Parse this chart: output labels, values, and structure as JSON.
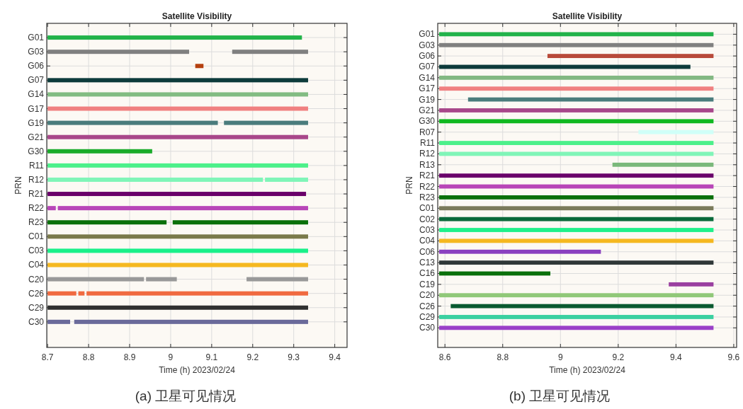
{
  "chart_data": [
    {
      "type": "bar",
      "orientation": "horizontal",
      "title": "Satellite Visibility",
      "xlabel": "Time (h)  2023/02/24",
      "ylabel": "PRN",
      "categories": [
        "G01",
        "G03",
        "G06",
        "G07",
        "G14",
        "G17",
        "G19",
        "G21",
        "G30",
        "R11",
        "R12",
        "R21",
        "R22",
        "R23",
        "C01",
        "C03",
        "C04",
        "C20",
        "C26",
        "C29",
        "C30"
      ],
      "series": [
        {
          "base": [
            8.7,
            8.7,
            9.06,
            8.7,
            8.7,
            8.7,
            8.7,
            8.7,
            8.7,
            8.7,
            8.7,
            8.7,
            8.7,
            8.7,
            8.7,
            8.7,
            8.7,
            8.7,
            8.7,
            8.7,
            8.7
          ],
          "values": [
            0.62,
            0.345,
            0.02,
            0.635,
            0.635,
            0.635,
            0.415,
            0.635,
            0.255,
            0.635,
            0.525,
            0.63,
            0.02,
            0.29,
            0.635,
            0.635,
            0.635,
            0.235,
            0.07,
            0.635,
            0.055
          ],
          "colors": [
            "#22b34a",
            "#808080",
            "#b5400f",
            "#0d3b3b",
            "#82bc82",
            "#f08080",
            "#4a7c7c",
            "#a8478a",
            "#1aab2a",
            "#4cf08a",
            "#80f5b8",
            "#6a006a",
            "#b845b8",
            "#0a700a",
            "#7a7a4a",
            "#1af08a",
            "#f5b820",
            "#999999",
            "#f06a40",
            "#303030",
            "#6a6a9a"
          ]
        },
        {
          "base": [
            null,
            9.15,
            null,
            null,
            null,
            null,
            9.13,
            null,
            null,
            null,
            9.23,
            null,
            8.725,
            9.005,
            null,
            null,
            null,
            8.94,
            8.775,
            null,
            8.765
          ],
          "values": [
            null,
            0.185,
            null,
            null,
            null,
            null,
            0.205,
            null,
            null,
            null,
            0.105,
            null,
            0.61,
            0.33,
            null,
            null,
            null,
            0.075,
            0.015,
            null,
            0.57
          ],
          "colors": [
            null,
            "#808080",
            null,
            null,
            null,
            null,
            "#4a7c7c",
            null,
            null,
            null,
            "#80f5b8",
            null,
            "#b845b8",
            "#0a700a",
            null,
            null,
            null,
            "#999999",
            "#f06a40",
            null,
            "#6a6a9a"
          ]
        },
        {
          "base": [
            null,
            null,
            null,
            null,
            null,
            null,
            null,
            null,
            null,
            null,
            null,
            null,
            null,
            null,
            null,
            null,
            null,
            9.185,
            8.795,
            null,
            null
          ],
          "values": [
            null,
            null,
            null,
            null,
            null,
            null,
            null,
            null,
            null,
            null,
            null,
            null,
            null,
            null,
            null,
            null,
            null,
            0.15,
            0.54,
            null,
            null
          ],
          "colors": [
            null,
            null,
            null,
            null,
            null,
            null,
            null,
            null,
            null,
            null,
            null,
            null,
            null,
            null,
            null,
            null,
            null,
            "#999999",
            "#f06a40",
            null,
            null
          ]
        }
      ],
      "xlim": [
        8.698,
        9.43
      ],
      "xticks": [
        8.7,
        8.8,
        8.9,
        9,
        9.1,
        9.2,
        9.3,
        9.4
      ],
      "grid": true,
      "annotations": [
        "(a) 卫星可见情况"
      ]
    },
    {
      "type": "bar",
      "orientation": "horizontal",
      "title": "Satellite Visibility",
      "xlabel": "Time (h)  2023/02/24",
      "ylabel": "PRN",
      "categories": [
        "G01",
        "G03",
        "G06",
        "G07",
        "G14",
        "G17",
        "G19",
        "G21",
        "G30",
        "R07",
        "R11",
        "R12",
        "R13",
        "R21",
        "R22",
        "R23",
        "C01",
        "C02",
        "C03",
        "C04",
        "C06",
        "C13",
        "C16",
        "C19",
        "C20",
        "C26",
        "C29",
        "C30"
      ],
      "series": [
        {
          "base": [
            8.58,
            8.58,
            8.955,
            8.58,
            8.58,
            8.58,
            8.68,
            8.58,
            8.58,
            9.27,
            8.58,
            8.58,
            9.18,
            8.58,
            8.58,
            8.58,
            8.58,
            8.58,
            8.58,
            8.58,
            8.58,
            8.58,
            8.58,
            9.375,
            8.58,
            8.62,
            8.58,
            8.58
          ],
          "values": [
            0.95,
            0.95,
            0.575,
            0.87,
            0.95,
            0.95,
            0.85,
            0.95,
            0.95,
            0.26,
            0.95,
            0.95,
            0.35,
            0.95,
            0.95,
            0.95,
            0.95,
            0.95,
            0.95,
            0.95,
            0.56,
            0.95,
            0.385,
            0.155,
            0.95,
            0.91,
            0.95,
            0.95
          ],
          "colors": [
            "#22b34a",
            "#808080",
            "#b84a3a",
            "#0d3b3b",
            "#82b882",
            "#f08080",
            "#4a7c7c",
            "#a8478a",
            "#10b820",
            "#d0fff8",
            "#4cf08a",
            "#80f5b8",
            "#7ab87a",
            "#6a006a",
            "#b845b8",
            "#0a700a",
            "#7a7a5a",
            "#0a6a3a",
            "#20f08a",
            "#f5b820",
            "#8a40c0",
            "#303838",
            "#0a700a",
            "#9a40a0",
            "#90c878",
            "#0a5a30",
            "#3ad0a0",
            "#9a40c8"
          ]
        }
      ],
      "xlim": [
        8.575,
        9.61
      ],
      "xticks": [
        8.6,
        8.8,
        9,
        9.2,
        9.4,
        9.6
      ],
      "grid": true,
      "annotations": [
        "(b) 卫星可见情况"
      ]
    }
  ]
}
